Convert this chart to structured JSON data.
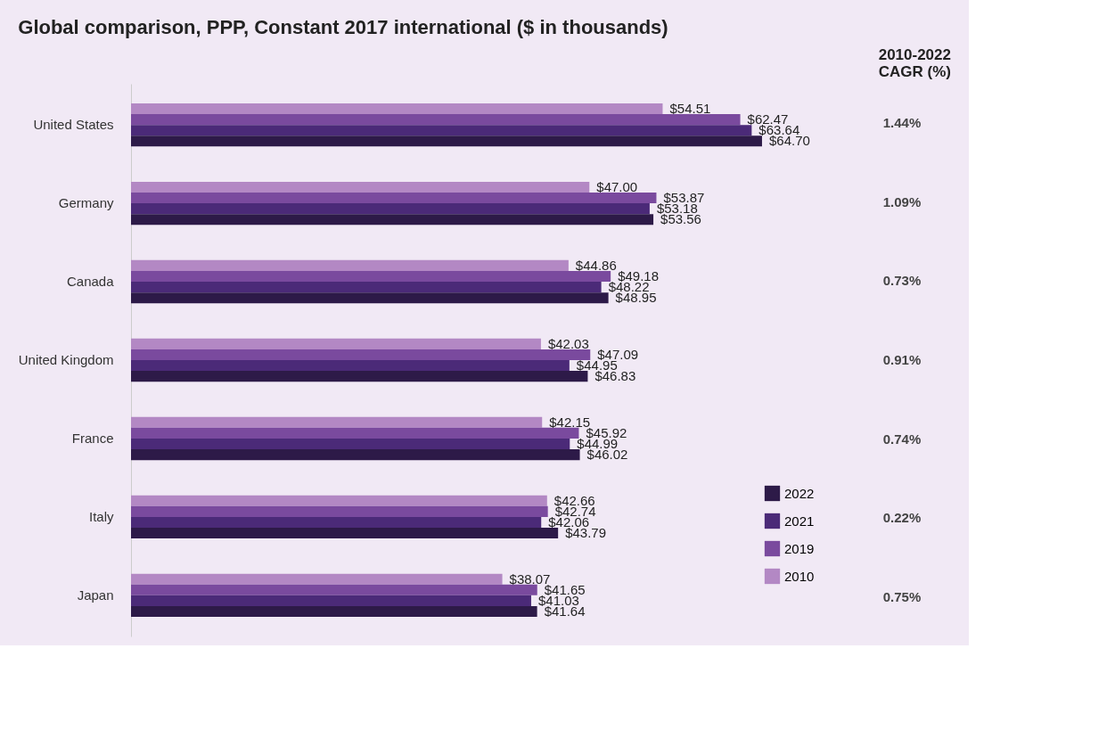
{
  "chart_data": {
    "type": "bar",
    "orientation": "horizontal",
    "title": "Global comparison, PPP, Constant 2017 international ($ in thousands)",
    "categories": [
      "United States",
      "Germany",
      "Canada",
      "United Kingdom",
      "France",
      "Italy",
      "Japan"
    ],
    "series": [
      {
        "name": "2010",
        "color": "#b388c4",
        "values": [
          54.51,
          47.0,
          44.86,
          42.03,
          42.15,
          42.66,
          38.07
        ],
        "value_labels": [
          "$54.51",
          "$47.00",
          "$44.86",
          "$42.03",
          "$42.15",
          "$42.66",
          "$38.07"
        ]
      },
      {
        "name": "2019",
        "color": "#7a4a9e",
        "values": [
          62.47,
          53.87,
          49.18,
          47.09,
          45.92,
          42.74,
          41.65
        ],
        "value_labels": [
          "$62.47",
          "$53.87",
          "$49.18",
          "$47.09",
          "$45.92",
          "$42.74",
          "$41.65"
        ]
      },
      {
        "name": "2021",
        "color": "#4b2a78",
        "values": [
          63.64,
          53.18,
          48.22,
          44.95,
          44.99,
          42.06,
          41.03
        ],
        "value_labels": [
          "$63.64",
          "$53.18",
          "$48.22",
          "$44.95",
          "$44.99",
          "$42.06",
          "$41.03"
        ]
      },
      {
        "name": "2022",
        "color": "#2d1a48",
        "values": [
          64.7,
          53.56,
          48.95,
          46.83,
          46.02,
          43.79,
          41.64
        ],
        "value_labels": [
          "$64.70",
          "$53.56",
          "$48.95",
          "$46.83",
          "$46.02",
          "$43.79",
          "$41.64"
        ]
      }
    ],
    "legend": "bottom right",
    "annotations": [
      "2010-2022",
      "CAGR (%)",
      "1.44%",
      "1.09%",
      "0.73%",
      "0.91%",
      "0.74%",
      "0.22%",
      "0.75%"
    ]
  }
}
